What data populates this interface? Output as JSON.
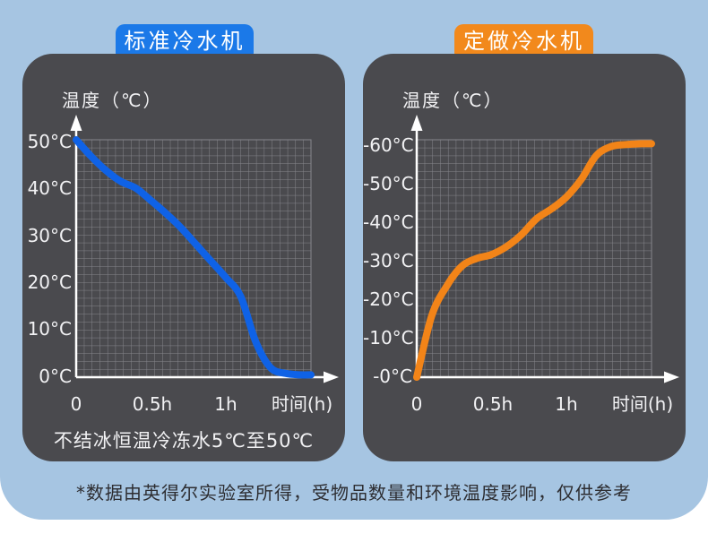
{
  "background_color": "#a6c5e2",
  "panel_color": "#4a4a4e",
  "grid_line_color": "#86868c",
  "panels": [
    {
      "badge": "标准冷水机",
      "badge_color": "#1b79e8",
      "y_axis_title": "温度（℃）",
      "y_ticks": [
        "50°C",
        "40°C",
        "30°C",
        "20°C",
        "10°C",
        "0°C"
      ],
      "x_ticks": [
        "0",
        "0.5h",
        "1h"
      ],
      "x_axis_title": "时间(h)",
      "caption": "不结冰恒温冷冻水5℃至50℃"
    },
    {
      "badge": "定做冷水机",
      "badge_color": "#f2891c",
      "y_axis_title": "温度（℃）",
      "y_ticks": [
        "-60°C",
        "-50°C",
        "-40°C",
        "-30°C",
        "-20°C",
        "-10°C",
        "-0°C"
      ],
      "x_ticks": [
        "0",
        "0.5h",
        "1h"
      ],
      "x_axis_title": "时间(h)"
    }
  ],
  "footer": {
    "text": "*数据由英得尔实验室所得，受物品数量和环境温度影响，仅供参考"
  },
  "chart_data": [
    {
      "type": "line",
      "title": "标准冷水机",
      "xlabel": "时间(h)",
      "ylabel": "温度(℃)",
      "color": "#0f62e6",
      "grid": true,
      "xlim": [
        0,
        1.57
      ],
      "ylim": [
        0,
        50
      ],
      "x": [
        0,
        0.1,
        0.2,
        0.3,
        0.4,
        0.5,
        0.6,
        0.7,
        0.8,
        0.9,
        1.0,
        1.1,
        1.2,
        1.3,
        1.4,
        1.5,
        1.57
      ],
      "values": [
        50,
        46.5,
        43.5,
        41.2,
        39.8,
        37.2,
        34.5,
        31.5,
        28,
        24.5,
        21,
        17,
        7.5,
        2,
        0.8,
        0.5,
        0.5
      ]
    },
    {
      "type": "line",
      "title": "定做冷水机",
      "xlabel": "时间(h)",
      "ylabel": "温度(℃)",
      "color": "#f28418",
      "grid": true,
      "xlim": [
        0,
        1.57
      ],
      "ylim": [
        0,
        -60
      ],
      "x": [
        0,
        0.1,
        0.2,
        0.3,
        0.4,
        0.5,
        0.6,
        0.7,
        0.8,
        0.9,
        1.0,
        1.1,
        1.2,
        1.3,
        1.4,
        1.5,
        1.57
      ],
      "values": [
        0,
        -15.5,
        -23,
        -28,
        -30,
        -31,
        -33,
        -36,
        -40,
        -42.5,
        -45.5,
        -50,
        -56,
        -58.3,
        -58.8,
        -59,
        -59
      ]
    }
  ]
}
